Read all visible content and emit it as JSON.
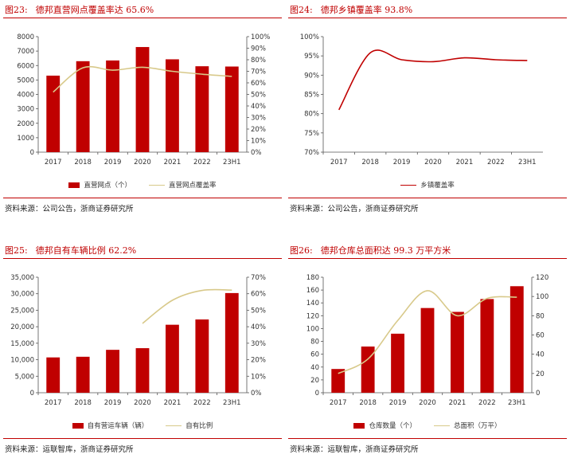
{
  "charts": [
    {
      "fig_no": "图23:",
      "title": "德邦直营网点覆盖率达 65.6%",
      "source": "资料来源：公司公告，浙商证券研究所",
      "legend": [
        "直营网点（个）",
        "直营网点覆盖率"
      ]
    },
    {
      "fig_no": "图24:",
      "title": "德邦乡镇覆盖率 93.8%",
      "source": "资料来源：公司公告，浙商证券研究所",
      "legend": [
        "乡镇覆盖率"
      ]
    },
    {
      "fig_no": "图25:",
      "title": "德邦自有车辆比例 62.2%",
      "source": "资料来源：运联智库，浙商证券研究所",
      "legend": [
        "自有营运车辆（辆）",
        "自有比例"
      ]
    },
    {
      "fig_no": "图26:",
      "title": "德邦仓库总面积达 99.3 万平方米",
      "source": "资料来源：运联智库，浙商证券研究所",
      "legend": [
        "仓库数量（个）",
        "总面积（万平）"
      ]
    }
  ],
  "colors": {
    "bar": "#c00000",
    "line_beige": "#d8c98a",
    "line_red": "#c00000",
    "title": "#c00000"
  },
  "chart_data": [
    {
      "type": "bar",
      "categories": [
        "2017",
        "2018",
        "2019",
        "2020",
        "2021",
        "2022",
        "23H1"
      ],
      "series": [
        {
          "name": "直营网点（个）",
          "type": "bar",
          "axis": "left",
          "values": [
            5300,
            6300,
            6350,
            7280,
            6430,
            5950,
            5930
          ]
        },
        {
          "name": "直营网点覆盖率",
          "type": "line",
          "axis": "right",
          "values": [
            0.52,
            0.73,
            0.71,
            0.735,
            0.7,
            0.675,
            0.656
          ]
        }
      ],
      "ylim_left": [
        0,
        8000
      ],
      "yticks_left": [
        0,
        1000,
        2000,
        3000,
        4000,
        5000,
        6000,
        7000,
        8000
      ],
      "ylim_right": [
        0,
        1
      ],
      "yticks_right": [
        "0%",
        "10%",
        "20%",
        "30%",
        "40%",
        "50%",
        "60%",
        "70%",
        "80%",
        "90%",
        "100%"
      ]
    },
    {
      "type": "line",
      "categories": [
        "2017",
        "2018",
        "2019",
        "2020",
        "2021",
        "2022",
        "23H1"
      ],
      "series": [
        {
          "name": "乡镇覆盖率",
          "type": "line",
          "axis": "left",
          "values": [
            0.81,
            0.958,
            0.94,
            0.935,
            0.945,
            0.94,
            0.938
          ]
        }
      ],
      "ylim_left": [
        0.7,
        1.0
      ],
      "yticks_left": [
        "70%",
        "75%",
        "80%",
        "85%",
        "90%",
        "95%",
        "100%"
      ]
    },
    {
      "type": "bar",
      "categories": [
        "2017",
        "2018",
        "2019",
        "2020",
        "2021",
        "2022",
        "23H1"
      ],
      "series": [
        {
          "name": "自有营运车辆（辆）",
          "type": "bar",
          "axis": "left",
          "values": [
            10700,
            10900,
            13000,
            13500,
            20600,
            22200,
            30200
          ]
        },
        {
          "name": "自有比例",
          "type": "line",
          "axis": "right",
          "values": [
            null,
            null,
            null,
            0.42,
            0.56,
            0.62,
            0.622
          ]
        }
      ],
      "ylim_left": [
        0,
        35000
      ],
      "yticks_left": [
        "0",
        "5,000",
        "10,000",
        "15,000",
        "20,000",
        "25,000",
        "30,000",
        "35,000"
      ],
      "ylim_right": [
        0,
        0.7
      ],
      "yticks_right": [
        "0%",
        "10%",
        "20%",
        "30%",
        "40%",
        "50%",
        "60%",
        "70%"
      ]
    },
    {
      "type": "bar",
      "categories": [
        "2017",
        "2018",
        "2019",
        "2020",
        "2021",
        "2022",
        "23H1"
      ],
      "series": [
        {
          "name": "仓库数量（个）",
          "type": "bar",
          "axis": "left",
          "values": [
            37,
            72,
            92,
            132,
            126,
            146,
            166
          ]
        },
        {
          "name": "总面积（万平）",
          "type": "line",
          "axis": "right",
          "values": [
            20,
            35,
            75,
            106,
            80,
            98,
            99.3
          ]
        }
      ],
      "ylim_left": [
        0,
        180
      ],
      "yticks_left": [
        "0",
        "20",
        "40",
        "60",
        "80",
        "100",
        "120",
        "140",
        "160",
        "180"
      ],
      "ylim_right": [
        0,
        120
      ],
      "yticks_right": [
        "0",
        "20",
        "40",
        "60",
        "80",
        "100",
        "120"
      ]
    }
  ]
}
